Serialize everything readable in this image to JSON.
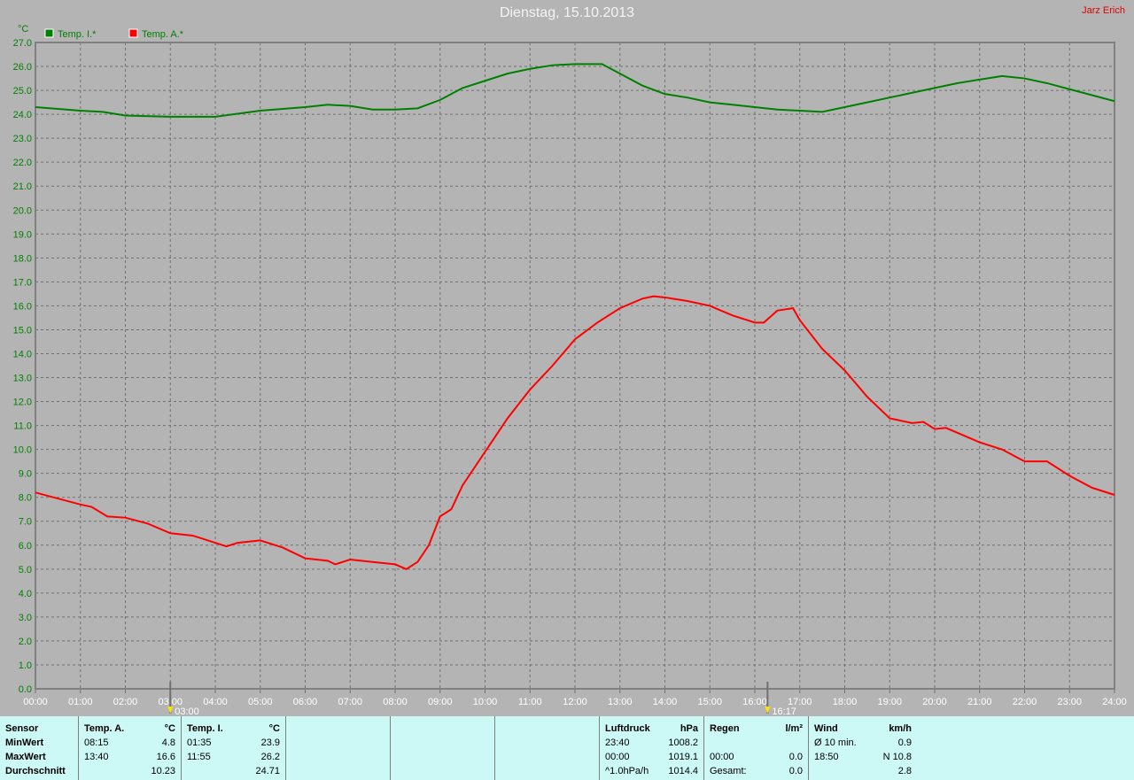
{
  "header": {
    "title": "Dienstag, 15.10.2013",
    "author": "Jarz Erich"
  },
  "chart_data": {
    "type": "line",
    "title": "Dienstag, 15.10.2013",
    "ylabel": "°C",
    "ylim": [
      0,
      27
    ],
    "yticks": [
      "0.0",
      "1.0",
      "2.0",
      "3.0",
      "4.0",
      "5.0",
      "6.0",
      "7.0",
      "8.0",
      "9.0",
      "10.0",
      "11.0",
      "12.0",
      "13.0",
      "14.0",
      "15.0",
      "16.0",
      "17.0",
      "18.0",
      "19.0",
      "20.0",
      "21.0",
      "22.0",
      "23.0",
      "24.0",
      "25.0",
      "26.0",
      "27.0"
    ],
    "xticks": [
      "00:00",
      "01:00",
      "02:00",
      "03:00",
      "04:00",
      "05:00",
      "06:00",
      "07:00",
      "08:00",
      "09:00",
      "10:00",
      "11:00",
      "12:00",
      "13:00",
      "14:00",
      "15:00",
      "16:00",
      "17:00",
      "18:00",
      "19:00",
      "20:00",
      "21:00",
      "22:00",
      "23:00",
      "24:00"
    ],
    "xlim_hours": [
      0,
      24
    ],
    "grid": true,
    "legend_placement": "top-left",
    "markers": [
      {
        "label": "03:00",
        "hour": 3.0,
        "icon": "sunrise-arrow-icon"
      },
      {
        "label": "16:17",
        "hour": 16.283,
        "icon": "sunset-icon"
      }
    ],
    "series": [
      {
        "name": "Temp. I.*",
        "color": "#008000",
        "points": [
          [
            0,
            24.3
          ],
          [
            1,
            24.15
          ],
          [
            1.5,
            24.1
          ],
          [
            2,
            23.95
          ],
          [
            3,
            23.9
          ],
          [
            4,
            23.9
          ],
          [
            5,
            24.15
          ],
          [
            6,
            24.3
          ],
          [
            6.5,
            24.4
          ],
          [
            7,
            24.35
          ],
          [
            7.5,
            24.2
          ],
          [
            8,
            24.2
          ],
          [
            8.5,
            24.25
          ],
          [
            9,
            24.6
          ],
          [
            9.5,
            25.1
          ],
          [
            10,
            25.4
          ],
          [
            10.5,
            25.7
          ],
          [
            11,
            25.9
          ],
          [
            11.5,
            26.05
          ],
          [
            12,
            26.1
          ],
          [
            12.6,
            26.1
          ],
          [
            13,
            25.7
          ],
          [
            13.5,
            25.2
          ],
          [
            14,
            24.85
          ],
          [
            14.5,
            24.7
          ],
          [
            15,
            24.5
          ],
          [
            15.5,
            24.4
          ],
          [
            16,
            24.3
          ],
          [
            16.5,
            24.2
          ],
          [
            17,
            24.15
          ],
          [
            17.5,
            24.1
          ],
          [
            18,
            24.3
          ],
          [
            18.5,
            24.5
          ],
          [
            19,
            24.7
          ],
          [
            19.5,
            24.9
          ],
          [
            20,
            25.1
          ],
          [
            20.5,
            25.3
          ],
          [
            21,
            25.45
          ],
          [
            21.5,
            25.6
          ],
          [
            22,
            25.5
          ],
          [
            22.5,
            25.3
          ],
          [
            23,
            25.05
          ],
          [
            23.5,
            24.8
          ],
          [
            24,
            24.55
          ]
        ]
      },
      {
        "name": "Temp. A.*",
        "color": "#ff0000",
        "points": [
          [
            0,
            8.2
          ],
          [
            0.5,
            7.95
          ],
          [
            1,
            7.7
          ],
          [
            1.25,
            7.6
          ],
          [
            1.6,
            7.2
          ],
          [
            2,
            7.15
          ],
          [
            2.5,
            6.9
          ],
          [
            3,
            6.5
          ],
          [
            3.5,
            6.4
          ],
          [
            4,
            6.1
          ],
          [
            4.25,
            5.95
          ],
          [
            4.5,
            6.1
          ],
          [
            5,
            6.2
          ],
          [
            5.5,
            5.9
          ],
          [
            6,
            5.45
          ],
          [
            6.5,
            5.35
          ],
          [
            6.67,
            5.2
          ],
          [
            7,
            5.4
          ],
          [
            7.5,
            5.3
          ],
          [
            8,
            5.2
          ],
          [
            8.25,
            5.0
          ],
          [
            8.5,
            5.3
          ],
          [
            8.75,
            6.0
          ],
          [
            9,
            7.2
          ],
          [
            9.25,
            7.5
          ],
          [
            9.5,
            8.5
          ],
          [
            10,
            9.9
          ],
          [
            10.5,
            11.3
          ],
          [
            11,
            12.5
          ],
          [
            11.5,
            13.5
          ],
          [
            12,
            14.6
          ],
          [
            12.5,
            15.3
          ],
          [
            13,
            15.9
          ],
          [
            13.5,
            16.3
          ],
          [
            13.75,
            16.4
          ],
          [
            14,
            16.35
          ],
          [
            14.5,
            16.2
          ],
          [
            15,
            16.0
          ],
          [
            15.5,
            15.6
          ],
          [
            16,
            15.3
          ],
          [
            16.2,
            15.3
          ],
          [
            16.5,
            15.8
          ],
          [
            16.85,
            15.9
          ],
          [
            17,
            15.4
          ],
          [
            17.5,
            14.2
          ],
          [
            18,
            13.3
          ],
          [
            18.5,
            12.2
          ],
          [
            19,
            11.3
          ],
          [
            19.5,
            11.1
          ],
          [
            19.75,
            11.15
          ],
          [
            20,
            10.85
          ],
          [
            20.25,
            10.9
          ],
          [
            20.5,
            10.7
          ],
          [
            21,
            10.3
          ],
          [
            21.5,
            10.0
          ],
          [
            22,
            9.5
          ],
          [
            22.5,
            9.5
          ],
          [
            23,
            8.9
          ],
          [
            23.5,
            8.4
          ],
          [
            24,
            8.1
          ]
        ]
      }
    ]
  },
  "table": {
    "sensor": {
      "h": "Sensor",
      "r1": "MinWert",
      "r2": "MaxWert",
      "r3": "Durchschnitt"
    },
    "tempA": {
      "h": "Temp. A.",
      "u": "°C",
      "min_t": "08:15",
      "min_v": "4.8",
      "max_t": "13:40",
      "max_v": "16.6",
      "avg": "10.23"
    },
    "tempI": {
      "h": "Temp. I.",
      "u": "°C",
      "min_t": "01:35",
      "min_v": "23.9",
      "max_t": "11:55",
      "max_v": "26.2",
      "avg": "24.71"
    },
    "luft": {
      "h": "Luftdruck",
      "u": "hPa",
      "min_t": "23:40",
      "min_v": "1008.2",
      "max_t": "00:00",
      "max_v": "1019.1",
      "trend": "^1.0hPa/h",
      "avg": "1014.4"
    },
    "regen": {
      "h": "Regen",
      "u": "l/m²",
      "max_t": "00:00",
      "max_v": "0.0",
      "total_l": "Gesamt:",
      "total_v": "0.0"
    },
    "wind": {
      "h": "Wind",
      "u": "km/h",
      "avg_l": "Ø 10 min.",
      "avg_v": "0.9",
      "max_t": "18:50",
      "max_v": "N 10.8",
      "v3": "2.8"
    }
  }
}
